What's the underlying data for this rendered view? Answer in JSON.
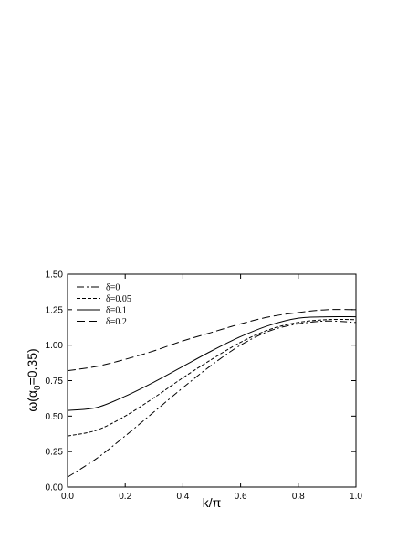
{
  "chart_data": {
    "type": "line",
    "xlabel": "k/π",
    "ylabel": "ω(α",
    "ylabel_sub": "0",
    "ylabel_tail": "=0.35)",
    "xlim": [
      0,
      1.0
    ],
    "ylim": [
      0,
      1.5
    ],
    "xticks": [
      "0.0",
      "0.2",
      "0.4",
      "0.6",
      "0.8",
      "1.0"
    ],
    "yticks": [
      "0.00",
      "0.25",
      "0.50",
      "0.75",
      "1.00",
      "1.25",
      "1.50"
    ],
    "legend_position": "top-left",
    "grid": false,
    "x": [
      0,
      0.1,
      0.2,
      0.3,
      0.4,
      0.5,
      0.6,
      0.7,
      0.8,
      0.9,
      1.0
    ],
    "series": [
      {
        "name": "δ=0",
        "dash": "dashdot",
        "values": [
          0.07,
          0.2,
          0.36,
          0.53,
          0.7,
          0.86,
          1.0,
          1.1,
          1.15,
          1.17,
          1.16
        ]
      },
      {
        "name": "δ=0.05",
        "dash": "short",
        "values": [
          0.36,
          0.4,
          0.5,
          0.63,
          0.77,
          0.9,
          1.02,
          1.11,
          1.16,
          1.18,
          1.18
        ]
      },
      {
        "name": "δ=0.1",
        "dash": "solid",
        "values": [
          0.54,
          0.56,
          0.64,
          0.74,
          0.85,
          0.96,
          1.06,
          1.14,
          1.19,
          1.2,
          1.2
        ]
      },
      {
        "name": "δ=0.2",
        "dash": "long",
        "values": [
          0.82,
          0.85,
          0.9,
          0.96,
          1.03,
          1.09,
          1.15,
          1.2,
          1.23,
          1.25,
          1.25
        ]
      }
    ]
  }
}
